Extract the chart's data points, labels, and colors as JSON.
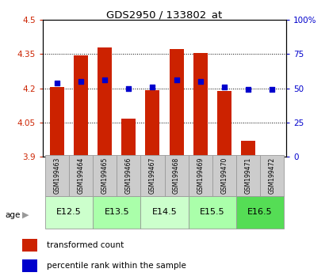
{
  "title": "GDS2950 / 133802_at",
  "samples": [
    "GSM199463",
    "GSM199464",
    "GSM199465",
    "GSM199466",
    "GSM199467",
    "GSM199468",
    "GSM199469",
    "GSM199470",
    "GSM199471",
    "GSM199472"
  ],
  "bar_values": [
    4.205,
    4.345,
    4.378,
    4.067,
    4.19,
    4.372,
    4.355,
    4.188,
    3.97,
    3.902
  ],
  "dot_values": [
    54,
    55,
    56,
    50,
    51,
    56,
    55,
    51,
    49,
    49
  ],
  "ylim_left": [
    3.9,
    4.5
  ],
  "ylim_right": [
    0,
    100
  ],
  "yticks_left": [
    3.9,
    4.05,
    4.2,
    4.35,
    4.5
  ],
  "yticks_right": [
    0,
    25,
    50,
    75,
    100
  ],
  "ytick_labels_left": [
    "3.9",
    "4.05",
    "4.2",
    "4.35",
    "4.5"
  ],
  "ytick_labels_right": [
    "0",
    "25",
    "50",
    "75",
    "100%"
  ],
  "groups": [
    {
      "label": "E12.5",
      "samples": [
        0,
        1
      ],
      "color": "#ccffcc"
    },
    {
      "label": "E13.5",
      "samples": [
        2,
        3
      ],
      "color": "#aaffaa"
    },
    {
      "label": "E14.5",
      "samples": [
        4,
        5
      ],
      "color": "#ccffcc"
    },
    {
      "label": "E15.5",
      "samples": [
        6,
        7
      ],
      "color": "#aaffaa"
    },
    {
      "label": "E16.5",
      "samples": [
        8,
        9
      ],
      "color": "#55dd55"
    }
  ],
  "bar_color": "#cc2200",
  "dot_color": "#0000cc",
  "bar_bottom": 3.9,
  "bar_width": 0.6,
  "bg_color": "#ffffff",
  "age_label": "age",
  "legend_bar_label": "transformed count",
  "legend_dot_label": "percentile rank within the sample",
  "sample_box_color": "#cccccc"
}
